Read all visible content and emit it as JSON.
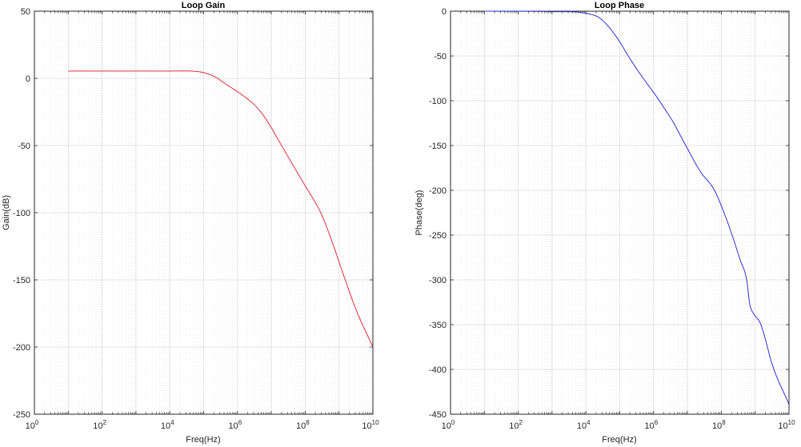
{
  "chart_data": [
    {
      "type": "line",
      "title": "Loop Gain",
      "xlabel": "Freq(Hz)",
      "ylabel": "Gain(dB)",
      "xscale": "log",
      "xlim": [
        1,
        10000000000
      ],
      "ylim": [
        -250,
        50
      ],
      "grid": true,
      "minor_grid": true,
      "x_tick_labels": [
        "10^0",
        "10^2",
        "10^4",
        "10^6",
        "10^8",
        "10^10"
      ],
      "y_tick_labels": [
        "50",
        "0",
        "-50",
        "-100",
        "-150",
        "-200",
        "-250"
      ],
      "series": [
        {
          "name": "Gain",
          "color": "#e0303c",
          "x_log10": [
            1.0,
            3.0,
            4.0,
            4.66,
            5.01,
            5.37,
            5.72,
            6.08,
            6.55,
            6.86,
            7.3,
            8.0,
            8.44,
            8.7,
            9.1,
            9.5,
            10.0
          ],
          "values": [
            5.4,
            5.4,
            5.4,
            5.4,
            4.2,
            0.6,
            -5.4,
            -11.3,
            -21,
            -31,
            -50,
            -80,
            -99,
            -115,
            -144,
            -172,
            -200
          ]
        }
      ]
    },
    {
      "type": "line",
      "title": "Loop Phase",
      "xlabel": "Freq(Hz)",
      "ylabel": "Phase(deg)",
      "xscale": "log",
      "xlim": [
        1,
        10000000000
      ],
      "ylim": [
        -450,
        0
      ],
      "grid": true,
      "minor_grid": true,
      "x_tick_labels": [
        "10^0",
        "10^2",
        "10^4",
        "10^6",
        "10^8",
        "10^10"
      ],
      "y_tick_labels": [
        "0",
        "-50",
        "-100",
        "-150",
        "-200",
        "-250",
        "-300",
        "-350",
        "-400",
        "-450"
      ],
      "series": [
        {
          "name": "Phase",
          "color": "#3030d0",
          "x_log10": [
            1.0,
            3.0,
            3.95,
            4.42,
            4.89,
            5.25,
            5.6,
            6.08,
            6.31,
            6.55,
            6.95,
            7.38,
            7.8,
            8.09,
            8.32,
            8.56,
            8.75,
            8.84,
            8.96,
            9.15,
            9.27,
            9.5,
            10.0
          ],
          "values": [
            0,
            -0.5,
            -2,
            -8,
            -28,
            -50,
            -70,
            -95,
            -108,
            -122,
            -150,
            -179,
            -200,
            -226,
            -250,
            -278,
            -300,
            -327,
            -338,
            -348,
            -362,
            -394,
            -439
          ]
        }
      ]
    }
  ],
  "plots": {
    "gain": {
      "title": "Loop Gain",
      "xlabel": "Freq(Hz)",
      "ylabel": "Gain(dB)",
      "yticks": [
        "50",
        "0",
        "-50",
        "-100",
        "-150",
        "-200",
        "-250"
      ]
    },
    "phase": {
      "title": "Loop Phase",
      "xlabel": "Freq(Hz)",
      "ylabel": "Phase(deg)",
      "yticks": [
        "0",
        "-50",
        "-100",
        "-150",
        "-200",
        "-250",
        "-300",
        "-350",
        "-400",
        "-450"
      ]
    },
    "xtick_base": "10",
    "xtick_exps": [
      "0",
      "2",
      "4",
      "6",
      "8",
      "10"
    ]
  }
}
